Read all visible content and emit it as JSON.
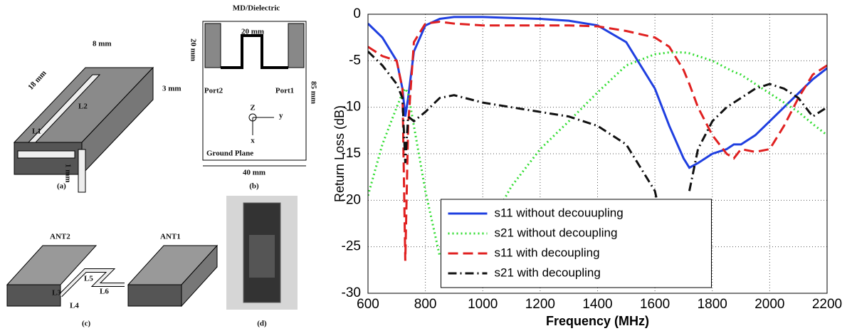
{
  "diagrams": {
    "a": [
      "8 mm",
      "18 mm",
      "3 mm",
      "L2",
      "L1",
      "1 mm",
      "(a)"
    ],
    "b": [
      "MD/Dielectric",
      "20 mm",
      "20 mm",
      "85 mm",
      "Port2",
      "Port1",
      "Z",
      "y",
      "x",
      "Ground Plane",
      "40 mm",
      "(b)"
    ],
    "c": [
      "ANT2",
      "ANT1",
      "L5",
      "L6",
      "L3",
      "L4",
      "(c)"
    ],
    "d": [
      "(d)"
    ]
  },
  "chart_data": {
    "type": "line",
    "x_label": "Frequency (MHz)",
    "y_label": "Return Loss (dB)",
    "x": [
      600,
      650,
      700,
      720,
      730,
      740,
      760,
      800,
      850,
      900,
      1000,
      1100,
      1200,
      1300,
      1400,
      1500,
      1600,
      1650,
      1700,
      1720,
      1750,
      1800,
      1850,
      1875,
      1900,
      1950,
      2000,
      2050,
      2100,
      2150,
      2200
    ],
    "series": [
      {
        "name": "s11 without decouupling",
        "color": "#1f3fe0",
        "dash": "solid",
        "values": [
          -1,
          -2.5,
          -5,
          -8,
          -11,
          -9,
          -4,
          -1.2,
          -0.5,
          -0.3,
          -0.3,
          -0.4,
          -0.5,
          -0.7,
          -1.2,
          -3,
          -8,
          -12,
          -15.5,
          -16.5,
          -16,
          -15,
          -14.5,
          -14,
          -14,
          -13,
          -11.5,
          -10,
          -8.5,
          -7,
          -5.8
        ]
      },
      {
        "name": "s21 without decoupling",
        "color": "#33dd33",
        "dash": "dotted",
        "values": [
          -19.5,
          -14,
          -10,
          -8.5,
          -8,
          -8.5,
          -12,
          -19,
          -26,
          null,
          -24,
          -18.5,
          -14.5,
          -11.5,
          -8.4,
          -5.5,
          -4.3,
          -4.1,
          -4.1,
          -4.2,
          -4.5,
          -5,
          -5.8,
          -6.2,
          -6.5,
          -7.5,
          -8.5,
          -9.5,
          -10.5,
          -11.8,
          -13
        ]
      },
      {
        "name": "s11 with decoupling",
        "color": "#e02020",
        "dash": "dashed",
        "values": [
          -3.5,
          -4.5,
          -5,
          -8,
          -26.5,
          -12,
          -3,
          -1,
          -0.8,
          -1,
          -1.2,
          -1.2,
          -1.2,
          -1.2,
          -1.3,
          -1.8,
          -2.5,
          -3.5,
          -6,
          -7.5,
          -10,
          -13,
          -15,
          -15.5,
          -14.5,
          -14.8,
          -14.5,
          -12,
          -9,
          -6.5,
          -5.5
        ]
      },
      {
        "name": "s21 with decoupling",
        "color": "#111111",
        "dash": "dashdot",
        "values": [
          -4,
          -5.5,
          -7.5,
          -9,
          -16,
          -11,
          -11.5,
          -10.5,
          -9,
          -8.7,
          -9.5,
          -10,
          -10.5,
          -11,
          -12,
          -14,
          -19,
          -26,
          null,
          -19,
          -14.5,
          -11.5,
          -10,
          -9.5,
          -9,
          -8,
          -7.5,
          -8,
          -9,
          -11,
          -10
        ]
      }
    ],
    "xlim": [
      600,
      2200
    ],
    "xticks": [
      600,
      800,
      1000,
      1200,
      1400,
      1600,
      1800,
      2000,
      2200
    ],
    "ylim": [
      -30,
      0
    ],
    "yticks": [
      -30,
      -25,
      -20,
      -15,
      -10,
      -5,
      0
    ],
    "grid": true,
    "legend": "lower center"
  }
}
